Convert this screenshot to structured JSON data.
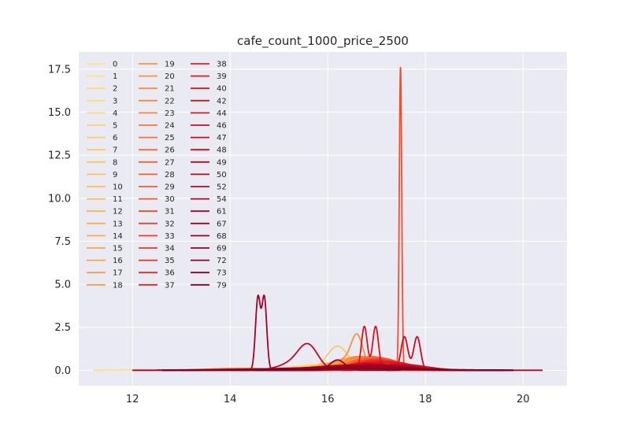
{
  "chart_data": {
    "type": "line",
    "title": "cafe_count_1000_price_2500",
    "xlabel": "",
    "ylabel": "",
    "xlim": [
      10.9,
      20.9
    ],
    "ylim": [
      -0.9,
      18.5
    ],
    "x_ticks": [
      12,
      14,
      16,
      18,
      20
    ],
    "x_tick_labels": [
      "12",
      "14",
      "16",
      "18",
      "20"
    ],
    "y_ticks": [
      0.0,
      2.5,
      5.0,
      7.5,
      10.0,
      12.5,
      15.0,
      17.5
    ],
    "y_tick_labels": [
      "0.0",
      "2.5",
      "5.0",
      "7.5",
      "10.0",
      "12.5",
      "15.0",
      "17.5"
    ],
    "grid": true,
    "legend_position": "top-left",
    "legend_columns": 3,
    "colormap": "YlOrRd",
    "series": [
      {
        "name": "0",
        "peaks": [
          [
            11.9,
            0.02,
            0.4
          ]
        ],
        "range": [
          11.2,
          12.6
        ]
      },
      {
        "name": "1",
        "peaks": [
          [
            16.2,
            0.25,
            0.8
          ]
        ],
        "range": [
          13.5,
          18.8
        ]
      },
      {
        "name": "2",
        "peaks": [
          [
            16.1,
            0.3,
            0.7
          ]
        ],
        "range": [
          13.8,
          18.5
        ]
      },
      {
        "name": "3",
        "peaks": [
          [
            16.0,
            0.35,
            0.7
          ]
        ],
        "range": [
          13.8,
          18.5
        ]
      },
      {
        "name": "4",
        "peaks": [
          [
            16.2,
            0.3,
            0.6
          ]
        ],
        "range": [
          14.0,
          18.5
        ]
      },
      {
        "name": "5",
        "peaks": [
          [
            16.3,
            0.4,
            0.6
          ]
        ],
        "range": [
          14.0,
          18.5
        ]
      },
      {
        "name": "6",
        "peaks": [
          [
            16.1,
            0.35,
            0.6
          ]
        ],
        "range": [
          14.0,
          18.5
        ]
      },
      {
        "name": "7",
        "peaks": [
          [
            16.2,
            1.4,
            0.22
          ]
        ],
        "range": [
          14.5,
          18.2
        ]
      },
      {
        "name": "8",
        "peaks": [
          [
            16.4,
            0.5,
            0.5
          ]
        ],
        "range": [
          14.2,
          18.5
        ]
      },
      {
        "name": "9",
        "peaks": [
          [
            16.5,
            0.45,
            0.55
          ]
        ],
        "range": [
          14.0,
          18.6
        ]
      },
      {
        "name": "10",
        "peaks": [
          [
            16.3,
            0.5,
            0.5
          ]
        ],
        "range": [
          14.0,
          18.6
        ]
      },
      {
        "name": "11",
        "peaks": [
          [
            16.5,
            0.6,
            0.45
          ]
        ],
        "range": [
          14.2,
          18.6
        ]
      },
      {
        "name": "12",
        "peaks": [
          [
            16.6,
            0.55,
            0.45
          ]
        ],
        "range": [
          14.2,
          18.6
        ]
      },
      {
        "name": "13",
        "peaks": [
          [
            16.4,
            0.6,
            0.45
          ]
        ],
        "range": [
          14.2,
          18.6
        ]
      },
      {
        "name": "14",
        "peaks": [
          [
            16.7,
            0.65,
            0.4
          ]
        ],
        "range": [
          14.3,
          18.7
        ]
      },
      {
        "name": "15",
        "peaks": [
          [
            16.5,
            0.7,
            0.4
          ]
        ],
        "range": [
          14.3,
          18.7
        ]
      },
      {
        "name": "16",
        "peaks": [
          [
            16.7,
            0.75,
            0.4
          ]
        ],
        "range": [
          14.3,
          18.7
        ]
      },
      {
        "name": "17",
        "peaks": [
          [
            16.6,
            0.8,
            0.38
          ]
        ],
        "range": [
          14.3,
          18.7
        ]
      },
      {
        "name": "18",
        "peaks": [
          [
            16.8,
            0.7,
            0.4
          ]
        ],
        "range": [
          14.3,
          18.7
        ]
      },
      {
        "name": "19",
        "peaks": [
          [
            14.2,
            0.12,
            0.6
          ]
        ],
        "range": [
          12.0,
          17.0
        ]
      },
      {
        "name": "20",
        "peaks": [
          [
            16.6,
            1.75,
            0.12
          ],
          [
            16.3,
            0.6,
            0.3
          ]
        ],
        "range": [
          14.5,
          18.5
        ]
      },
      {
        "name": "21",
        "peaks": [
          [
            16.8,
            0.75,
            0.4
          ]
        ],
        "range": [
          14.4,
          18.8
        ]
      },
      {
        "name": "22",
        "peaks": [
          [
            16.9,
            0.7,
            0.4
          ]
        ],
        "range": [
          14.4,
          18.8
        ]
      },
      {
        "name": "23",
        "peaks": [
          [
            16.7,
            0.8,
            0.38
          ]
        ],
        "range": [
          14.4,
          18.8
        ]
      },
      {
        "name": "24",
        "peaks": [
          [
            17.0,
            0.75,
            0.4
          ]
        ],
        "range": [
          14.4,
          18.8
        ]
      },
      {
        "name": "25",
        "peaks": [
          [
            16.9,
            0.8,
            0.38
          ]
        ],
        "range": [
          14.4,
          18.8
        ]
      },
      {
        "name": "26",
        "peaks": [
          [
            16.8,
            0.7,
            0.4
          ]
        ],
        "range": [
          14.4,
          18.8
        ]
      },
      {
        "name": "27",
        "peaks": [
          [
            17.0,
            0.75,
            0.38
          ]
        ],
        "range": [
          14.5,
          18.8
        ]
      },
      {
        "name": "28",
        "peaks": [
          [
            16.9,
            0.7,
            0.4
          ]
        ],
        "range": [
          14.5,
          18.8
        ]
      },
      {
        "name": "29",
        "peaks": [
          [
            17.1,
            0.7,
            0.38
          ]
        ],
        "range": [
          14.5,
          18.9
        ]
      },
      {
        "name": "30",
        "peaks": [
          [
            17.49,
            17.6,
            0.025
          ]
        ],
        "range": [
          17.2,
          17.8
        ]
      },
      {
        "name": "31",
        "peaks": [
          [
            17.0,
            0.65,
            0.4
          ]
        ],
        "range": [
          14.5,
          18.9
        ]
      },
      {
        "name": "32",
        "peaks": [
          [
            17.1,
            0.6,
            0.4
          ]
        ],
        "range": [
          14.5,
          18.9
        ]
      },
      {
        "name": "33",
        "peaks": [
          [
            16.9,
            0.6,
            0.42
          ]
        ],
        "range": [
          14.5,
          18.9
        ]
      },
      {
        "name": "34",
        "peaks": [
          [
            17.2,
            0.55,
            0.42
          ]
        ],
        "range": [
          14.5,
          19.0
        ]
      },
      {
        "name": "35",
        "peaks": [
          [
            17.0,
            0.6,
            0.42
          ]
        ],
        "range": [
          14.5,
          19.0
        ]
      },
      {
        "name": "36",
        "peaks": [
          [
            17.3,
            0.5,
            0.42
          ]
        ],
        "range": [
          14.5,
          19.0
        ]
      },
      {
        "name": "37",
        "peaks": [
          [
            17.1,
            0.5,
            0.45
          ]
        ],
        "range": [
          14.5,
          19.0
        ]
      },
      {
        "name": "38",
        "peaks": [
          [
            17.2,
            0.45,
            0.45
          ]
        ],
        "range": [
          14.5,
          19.1
        ]
      },
      {
        "name": "39",
        "peaks": [
          [
            17.0,
            0.5,
            0.45
          ]
        ],
        "range": [
          14.5,
          19.1
        ]
      },
      {
        "name": "40",
        "peaks": [
          [
            17.3,
            0.45,
            0.45
          ]
        ],
        "range": [
          14.5,
          19.2
        ]
      },
      {
        "name": "42",
        "peaks": [
          [
            16.75,
            2.55,
            0.06
          ],
          [
            16.98,
            2.55,
            0.06
          ]
        ],
        "range": [
          16.3,
          17.4
        ]
      },
      {
        "name": "44",
        "peaks": [
          [
            15.0,
            0.08,
            1.3
          ]
        ],
        "range": [
          12.5,
          19.8
        ]
      },
      {
        "name": "46",
        "peaks": [
          [
            17.5,
            0.35,
            0.5
          ]
        ],
        "range": [
          15.0,
          19.5
        ]
      },
      {
        "name": "47",
        "peaks": [
          [
            17.57,
            1.95,
            0.07
          ],
          [
            17.83,
            1.95,
            0.07
          ]
        ],
        "range": [
          17.2,
          18.2
        ]
      },
      {
        "name": "48",
        "peaks": [
          [
            16.8,
            0.4,
            0.5
          ]
        ],
        "range": [
          15.0,
          19.5
        ]
      },
      {
        "name": "49",
        "peaks": [
          [
            15.6,
            1.3,
            0.2
          ],
          [
            15.3,
            0.4,
            0.3
          ]
        ],
        "range": [
          14.5,
          16.5
        ]
      },
      {
        "name": "50",
        "peaks": [
          [
            17.0,
            0.35,
            0.6
          ]
        ],
        "range": [
          14.5,
          19.5
        ]
      },
      {
        "name": "52",
        "peaks": [
          [
            16.5,
            0.3,
            0.8
          ]
        ],
        "range": [
          12.0,
          20.4
        ]
      },
      {
        "name": "54",
        "peaks": [
          [
            17.2,
            0.3,
            0.6
          ]
        ],
        "range": [
          14.0,
          19.5
        ]
      },
      {
        "name": "61",
        "peaks": [
          [
            16.0,
            0.15,
            1.2
          ]
        ],
        "range": [
          12.6,
          19.8
        ]
      },
      {
        "name": "67",
        "peaks": [
          [
            14.57,
            4.2,
            0.05
          ],
          [
            14.7,
            4.2,
            0.05
          ]
        ],
        "range": [
          14.2,
          15.1
        ]
      },
      {
        "name": "68",
        "peaks": [
          [
            16.3,
            0.2,
            1.0
          ]
        ],
        "range": [
          12.6,
          19.6
        ]
      },
      {
        "name": "69",
        "peaks": [
          [
            16.2,
            0.6,
            0.15
          ]
        ],
        "range": [
          15.0,
          17.5
        ]
      },
      {
        "name": "72",
        "peaks": [
          [
            16.8,
            0.25,
            0.8
          ]
        ],
        "range": [
          13.0,
          19.7
        ]
      },
      {
        "name": "73",
        "peaks": [
          [
            16.2,
            0.12,
            1.3
          ]
        ],
        "range": [
          12.6,
          19.8
        ]
      },
      {
        "name": "79",
        "peaks": [
          [
            16.6,
            0.1,
            1.4
          ]
        ],
        "range": [
          12.6,
          19.8
        ]
      }
    ]
  }
}
